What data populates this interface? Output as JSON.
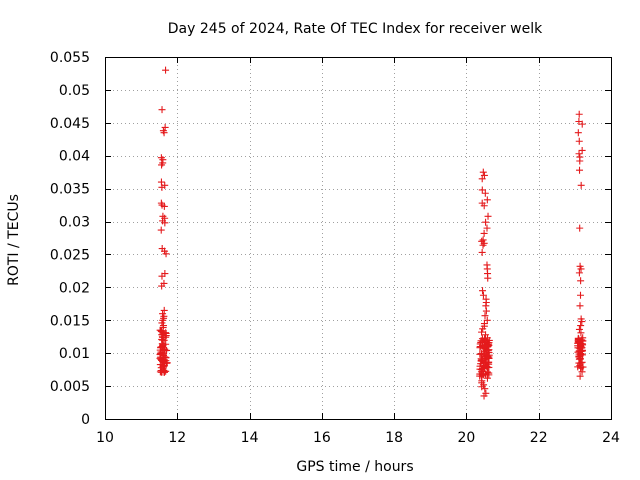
{
  "chart_data": {
    "type": "scatter",
    "title": "Day 245 of 2024, Rate Of TEC Index for receiver welk",
    "xlabel": "GPS time / hours",
    "ylabel": "ROTI / TECUs",
    "xlim": [
      10,
      24
    ],
    "ylim": [
      0,
      0.055
    ],
    "xticks": [
      10,
      12,
      14,
      16,
      18,
      20,
      22,
      24
    ],
    "xtick_labels": [
      "10",
      "12",
      "14",
      "16",
      "18",
      "20",
      "22",
      "24"
    ],
    "yticks": [
      0,
      0.005,
      0.01,
      0.015,
      0.02,
      0.025,
      0.03,
      0.035,
      0.04,
      0.045,
      0.05,
      0.055
    ],
    "ytick_labels": [
      "0",
      "0.005",
      "0.01",
      "0.015",
      "0.02",
      "0.025",
      "0.03",
      "0.035",
      "0.04",
      "0.045",
      "0.05",
      "0.055"
    ],
    "grid": true,
    "marker": "+",
    "color": "#e41a1c",
    "clusters": [
      {
        "x_center": 11.62,
        "x_spread": 0.1,
        "y_dense_range": [
          0.007,
          0.0135
        ],
        "n_dense": 75,
        "y_sparse": [
          0.053,
          0.047,
          0.0443,
          0.0438,
          0.0435,
          0.0397,
          0.0394,
          0.0389,
          0.0386,
          0.036,
          0.0355,
          0.0352,
          0.0328,
          0.0325,
          0.0323,
          0.0308,
          0.0305,
          0.0301,
          0.0298,
          0.0287,
          0.0259,
          0.0255,
          0.0251,
          0.0221,
          0.0217,
          0.0206,
          0.0202,
          0.0165,
          0.016,
          0.0156,
          0.0153,
          0.015,
          0.0146,
          0.0142,
          0.0139
        ]
      },
      {
        "x_center": 20.5,
        "x_spread": 0.14,
        "y_dense_range": [
          0.0065,
          0.0125
        ],
        "n_dense": 90,
        "y_sparse": [
          0.0375,
          0.037,
          0.0365,
          0.0348,
          0.0343,
          0.0333,
          0.0328,
          0.0324,
          0.0308,
          0.0299,
          0.029,
          0.0282,
          0.0272,
          0.027,
          0.0267,
          0.0264,
          0.0253,
          0.0234,
          0.0228,
          0.0221,
          0.0214,
          0.0195,
          0.0188,
          0.0182,
          0.0177,
          0.0172,
          0.0164,
          0.0157,
          0.015,
          0.0145,
          0.0141,
          0.0137,
          0.0132,
          0.0128,
          0.0062,
          0.0058,
          0.0055,
          0.0052,
          0.0049,
          0.0046,
          0.0039,
          0.0035
        ]
      },
      {
        "x_center": 23.15,
        "x_spread": 0.08,
        "y_dense_range": [
          0.007,
          0.0125
        ],
        "n_dense": 55,
        "y_sparse": [
          0.0463,
          0.0452,
          0.0448,
          0.0435,
          0.0422,
          0.0408,
          0.0403,
          0.0398,
          0.0392,
          0.0378,
          0.0355,
          0.029,
          0.0232,
          0.0228,
          0.0222,
          0.021,
          0.0188,
          0.0172,
          0.0152,
          0.0148,
          0.0142,
          0.0136,
          0.0131,
          0.0065
        ]
      }
    ]
  }
}
